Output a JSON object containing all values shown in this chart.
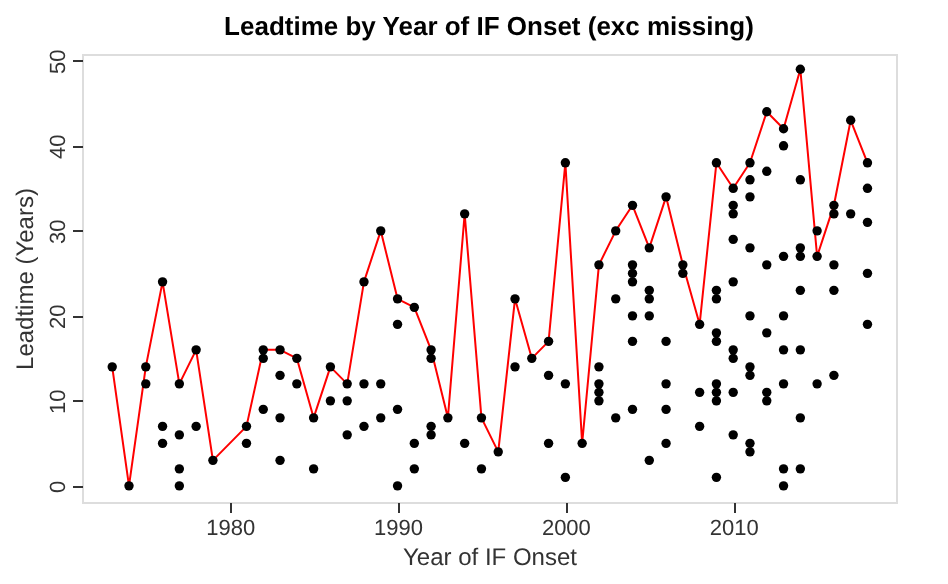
{
  "chart_data": {
    "type": "scatter",
    "title": "Leadtime by Year of IF Onset (exc missing)",
    "xlabel": "Year of IF Onset",
    "ylabel": "Leadtime (Years)",
    "xlim": [
      1971.2,
      2019.7
    ],
    "ylim": [
      -1.9,
      50.8
    ],
    "xticks": [
      1980,
      1990,
      2000,
      2010
    ],
    "yticks": [
      0,
      10,
      20,
      30,
      40,
      50
    ],
    "grid": false,
    "marker": "circle",
    "series": [
      {
        "type": "line",
        "color": "#ff0000",
        "marker": "none",
        "line_style": "solid",
        "x": [
          1973,
          1974,
          1975,
          1976,
          1977,
          1978,
          1979,
          1981,
          1982,
          1983,
          1984,
          1985,
          1986,
          1987,
          1988,
          1989,
          1990,
          1991,
          1992,
          1993,
          1994,
          1995,
          1996,
          1997,
          1998,
          1999,
          2000,
          2001,
          2002,
          2003,
          2004,
          2005,
          2006,
          2007,
          2008,
          2009,
          2010,
          2011,
          2012,
          2013,
          2014,
          2015,
          2016,
          2017,
          2018
        ],
        "values": [
          14,
          0,
          14,
          24,
          12,
          16,
          3,
          7,
          16,
          16,
          15,
          8,
          14,
          12,
          24,
          30,
          22,
          21,
          16,
          8,
          32,
          8,
          4,
          22,
          15,
          17,
          38,
          5,
          26,
          30,
          33,
          28,
          34,
          26,
          19,
          38,
          35,
          38,
          44,
          42,
          49,
          27,
          33,
          43,
          38
        ]
      },
      {
        "color": "#000000",
        "x": [
          1973,
          1974,
          1975,
          1975,
          1976,
          1976,
          1976,
          1977,
          1977,
          1977,
          1977,
          1978,
          1978,
          1979,
          1981,
          1981,
          1982,
          1982,
          1982,
          1983,
          1983,
          1983,
          1983,
          1984,
          1984,
          1985,
          1985,
          1986,
          1986,
          1987,
          1987,
          1987,
          1988,
          1988,
          1988,
          1989,
          1989,
          1989,
          1990,
          1990,
          1990,
          1990,
          1991,
          1991,
          1991,
          1992,
          1992,
          1992,
          1992,
          1993,
          1994,
          1994,
          1995,
          1995,
          1996,
          1997,
          1997,
          1998,
          1999,
          1999,
          1999,
          2000,
          2000,
          2000,
          2001,
          2002,
          2002,
          2002,
          2002,
          2002,
          2003,
          2003,
          2003,
          2004,
          2004,
          2004,
          2004,
          2004,
          2004,
          2004,
          2005,
          2005,
          2005,
          2005,
          2005,
          2006,
          2006,
          2006,
          2006,
          2006,
          2007,
          2007,
          2008,
          2008,
          2008,
          2009,
          2009,
          2009,
          2009,
          2009,
          2009,
          2009,
          2009,
          2009,
          2010,
          2010,
          2010,
          2010,
          2010,
          2010,
          2010,
          2010,
          2010,
          2011,
          2011,
          2011,
          2011,
          2011,
          2011,
          2011,
          2011,
          2011,
          2012,
          2012,
          2012,
          2012,
          2012,
          2012,
          2013,
          2013,
          2013,
          2013,
          2013,
          2013,
          2013,
          2013,
          2014,
          2014,
          2014,
          2014,
          2014,
          2014,
          2014,
          2014,
          2015,
          2015,
          2015,
          2016,
          2016,
          2016,
          2016,
          2016,
          2017,
          2017,
          2018,
          2018,
          2018,
          2018,
          2018
        ],
        "values": [
          14,
          0,
          14,
          12,
          24,
          7,
          5,
          12,
          6,
          2,
          0,
          16,
          7,
          3,
          7,
          5,
          16,
          15,
          9,
          16,
          13,
          8,
          3,
          15,
          12,
          8,
          2,
          14,
          10,
          12,
          10,
          6,
          24,
          12,
          7,
          30,
          12,
          8,
          22,
          19,
          9,
          0,
          21,
          5,
          2,
          16,
          15,
          7,
          6,
          8,
          32,
          5,
          8,
          2,
          4,
          22,
          14,
          15,
          17,
          13,
          5,
          38,
          12,
          1,
          5,
          26,
          14,
          12,
          11,
          10,
          30,
          22,
          8,
          33,
          26,
          25,
          24,
          20,
          17,
          9,
          28,
          23,
          22,
          20,
          3,
          34,
          17,
          12,
          9,
          5,
          26,
          25,
          19,
          11,
          7,
          38,
          23,
          22,
          18,
          17,
          12,
          11,
          10,
          1,
          35,
          33,
          32,
          29,
          24,
          16,
          15,
          11,
          6,
          38,
          36,
          34,
          28,
          20,
          14,
          13,
          5,
          4,
          44,
          37,
          26,
          18,
          11,
          10,
          42,
          40,
          27,
          20,
          16,
          12,
          2,
          0,
          49,
          36,
          28,
          27,
          23,
          16,
          8,
          2,
          30,
          27,
          12,
          33,
          32,
          26,
          23,
          13,
          43,
          32,
          38,
          35,
          31,
          25,
          19
        ]
      }
    ]
  }
}
